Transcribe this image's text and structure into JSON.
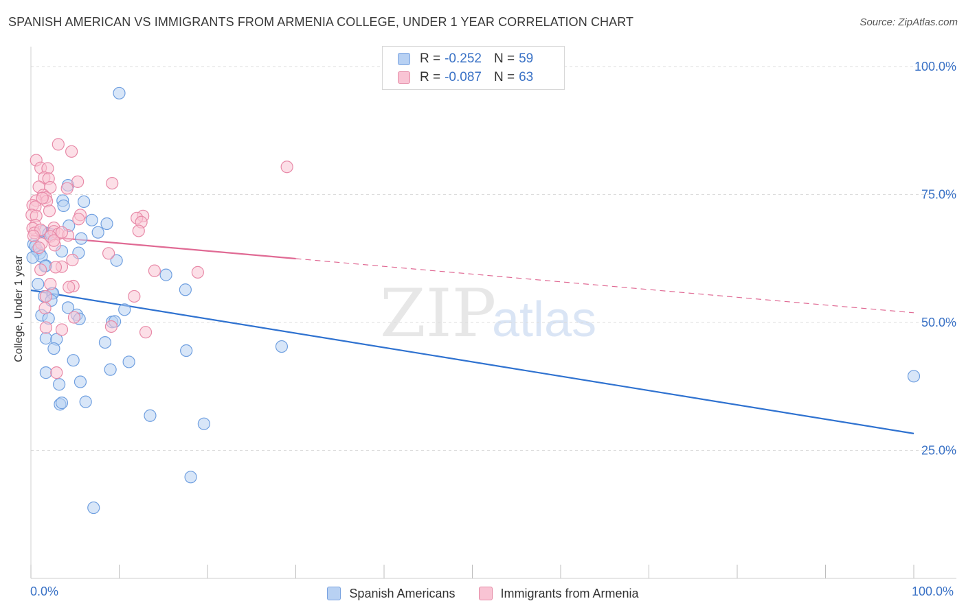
{
  "title": "SPANISH AMERICAN VS IMMIGRANTS FROM ARMENIA COLLEGE, UNDER 1 YEAR CORRELATION CHART",
  "source": "Source: ZipAtlas.com",
  "watermark": {
    "zip": "ZIP",
    "atlas": "atlas"
  },
  "legend_top": [
    {
      "r_label": "R =",
      "r_value": "-0.252",
      "n_label": "N =",
      "n_value": "59",
      "fill": "#b8d1f3",
      "stroke": "#7aa3e0"
    },
    {
      "r_label": "R =",
      "r_value": "-0.087",
      "n_label": "N =",
      "n_value": "63",
      "fill": "#f9c4d4",
      "stroke": "#e58aa6"
    }
  ],
  "chart_data": {
    "type": "scatter",
    "xlabel": "",
    "ylabel": "College, Under 1 year",
    "xlim": [
      0,
      100
    ],
    "ylim": [
      0,
      100
    ],
    "x_tick_labels": [
      "0.0%",
      "100.0%"
    ],
    "y_ticks": [
      {
        "value": 100,
        "label": "100.0%"
      },
      {
        "value": 75,
        "label": "75.0%"
      },
      {
        "value": 50,
        "label": "50.0%"
      },
      {
        "value": 25,
        "label": "25.0%"
      }
    ],
    "grid": "horizontal-dashed",
    "legend_position": "bottom",
    "series": [
      {
        "name": "Spanish Americans",
        "color": "#6f9fe0",
        "fill": "#b8d1f3",
        "line_color": "#2f72d0",
        "trend": {
          "x0": 0,
          "y0": 56.3,
          "x1": 100,
          "y1": 28.3,
          "dashed_from": null
        },
        "points": [
          [
            10,
            94.8
          ],
          [
            4.2,
            76.8
          ],
          [
            6,
            73.6
          ],
          [
            3.6,
            73.8
          ],
          [
            3.7,
            72.8
          ],
          [
            4.3,
            68.9
          ],
          [
            6.9,
            70.0
          ],
          [
            8.6,
            69.3
          ],
          [
            7.6,
            67.6
          ],
          [
            5.7,
            66.4
          ],
          [
            1.3,
            67.8
          ],
          [
            2,
            67.4
          ],
          [
            0.3,
            65.3
          ],
          [
            0.7,
            64.1
          ],
          [
            1,
            63.5
          ],
          [
            3.5,
            63.9
          ],
          [
            5.4,
            63.6
          ],
          [
            1.2,
            62.9
          ],
          [
            0.2,
            62.7
          ],
          [
            9.7,
            62.1
          ],
          [
            1.7,
            61.1
          ],
          [
            1.6,
            61.0
          ],
          [
            15.3,
            59.3
          ],
          [
            0.8,
            57.5
          ],
          [
            17.5,
            56.4
          ],
          [
            2.4,
            55.7
          ],
          [
            1.5,
            55.1
          ],
          [
            2.5,
            55.7
          ],
          [
            2.3,
            54.3
          ],
          [
            10.6,
            52.5
          ],
          [
            4.2,
            52.9
          ],
          [
            1.2,
            51.4
          ],
          [
            5.2,
            51.5
          ],
          [
            2,
            50.8
          ],
          [
            5.5,
            50.7
          ],
          [
            9.2,
            50.1
          ],
          [
            9.5,
            50.2
          ],
          [
            1.7,
            46.9
          ],
          [
            2.9,
            46.7
          ],
          [
            8.4,
            46.1
          ],
          [
            28.4,
            45.3
          ],
          [
            2.6,
            44.9
          ],
          [
            17.6,
            44.5
          ],
          [
            4.8,
            42.6
          ],
          [
            11.1,
            42.3
          ],
          [
            9,
            40.8
          ],
          [
            1.7,
            40.2
          ],
          [
            5.6,
            38.4
          ],
          [
            3.2,
            37.9
          ],
          [
            3.3,
            34.0
          ],
          [
            3.5,
            34.3
          ],
          [
            6.2,
            34.5
          ],
          [
            13.5,
            31.8
          ],
          [
            19.6,
            30.2
          ],
          [
            18.1,
            19.8
          ],
          [
            7.1,
            13.8
          ],
          [
            100,
            39.5
          ],
          [
            0.5,
            64.9
          ],
          [
            2.3,
            67.2
          ]
        ]
      },
      {
        "name": "Immigrants from Armenia",
        "color": "#e88aa8",
        "fill": "#f9c4d4",
        "line_color": "#e06a94",
        "trend": {
          "x0": 0,
          "y0": 67.0,
          "x1": 100,
          "y1": 51.9,
          "dashed_from": 30
        },
        "points": [
          [
            3.1,
            84.8
          ],
          [
            4.6,
            83.4
          ],
          [
            0.6,
            81.7
          ],
          [
            1.1,
            80.2
          ],
          [
            1.9,
            80.1
          ],
          [
            29,
            80.4
          ],
          [
            1.5,
            78.3
          ],
          [
            2,
            78.1
          ],
          [
            5.3,
            77.5
          ],
          [
            9.2,
            77.2
          ],
          [
            0.9,
            76.5
          ],
          [
            2.2,
            76.4
          ],
          [
            4.1,
            76.2
          ],
          [
            1.4,
            74.9
          ],
          [
            1.7,
            74.4
          ],
          [
            0.6,
            73.8
          ],
          [
            1.8,
            73.7
          ],
          [
            1.3,
            74.3
          ],
          [
            0.2,
            72.9
          ],
          [
            0.5,
            72.6
          ],
          [
            2.1,
            71.8
          ],
          [
            0.1,
            71.0
          ],
          [
            0.6,
            70.8
          ],
          [
            5.6,
            71.0
          ],
          [
            12.7,
            70.8
          ],
          [
            12,
            70.4
          ],
          [
            5.4,
            70.2
          ],
          [
            12.5,
            69.6
          ],
          [
            0.5,
            69.0
          ],
          [
            0.2,
            68.4
          ],
          [
            2.6,
            68.5
          ],
          [
            2.6,
            67.8
          ],
          [
            0.4,
            67.5
          ],
          [
            12.2,
            67.9
          ],
          [
            3.1,
            67.3
          ],
          [
            2.2,
            66.8
          ],
          [
            4.2,
            67.0
          ],
          [
            2.7,
            65.1
          ],
          [
            1.2,
            65.4
          ],
          [
            0.9,
            64.6
          ],
          [
            8.8,
            63.5
          ],
          [
            4.7,
            62.2
          ],
          [
            3.5,
            60.9
          ],
          [
            1.1,
            60.3
          ],
          [
            14,
            60.1
          ],
          [
            18.9,
            59.8
          ],
          [
            4.8,
            57.1
          ],
          [
            4.3,
            56.9
          ],
          [
            2.2,
            57.5
          ],
          [
            1.7,
            55.1
          ],
          [
            11.7,
            55.1
          ],
          [
            1.6,
            52.8
          ],
          [
            4.9,
            51.0
          ],
          [
            9.1,
            49.2
          ],
          [
            1.7,
            49.0
          ],
          [
            3.5,
            48.6
          ],
          [
            13,
            48.1
          ],
          [
            2.9,
            40.2
          ],
          [
            2.6,
            66.0
          ],
          [
            1.1,
            68.1
          ],
          [
            3.5,
            67.6
          ],
          [
            0.3,
            66.9
          ],
          [
            2.8,
            60.8
          ]
        ]
      }
    ]
  }
}
